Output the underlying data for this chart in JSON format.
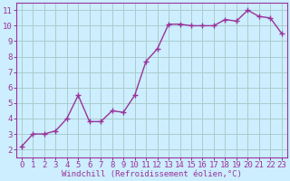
{
  "x": [
    0,
    1,
    2,
    3,
    4,
    5,
    6,
    7,
    8,
    9,
    10,
    11,
    12,
    13,
    14,
    15,
    16,
    17,
    18,
    19,
    20,
    21,
    22,
    23
  ],
  "y": [
    2.2,
    3.0,
    3.0,
    3.2,
    4.0,
    5.5,
    3.8,
    3.8,
    4.5,
    4.4,
    5.5,
    7.7,
    8.5,
    10.1,
    10.1,
    10.0,
    10.0,
    10.0,
    10.4,
    10.3,
    11.0,
    10.6,
    10.5,
    9.5
  ],
  "line_color": "#993399",
  "marker": "+",
  "marker_size": 4,
  "bg_color": "#cceeff",
  "grid_color": "#aacccc",
  "axis_label_color": "#993399",
  "tick_color": "#993399",
  "xlabel": "Windchill (Refroidissement éolien,°C)",
  "ylabel": "",
  "xlim": [
    -0.5,
    23.5
  ],
  "ylim": [
    1.5,
    11.5
  ],
  "yticks": [
    2,
    3,
    4,
    5,
    6,
    7,
    8,
    9,
    10,
    11
  ],
  "xticks": [
    0,
    1,
    2,
    3,
    4,
    5,
    6,
    7,
    8,
    9,
    10,
    11,
    12,
    13,
    14,
    15,
    16,
    17,
    18,
    19,
    20,
    21,
    22,
    23
  ],
  "tick_fontsize": 6.5,
  "label_fontsize": 6.5,
  "spine_color": "#993399",
  "linewidth": 1.0,
  "markeredgewidth": 1.0
}
